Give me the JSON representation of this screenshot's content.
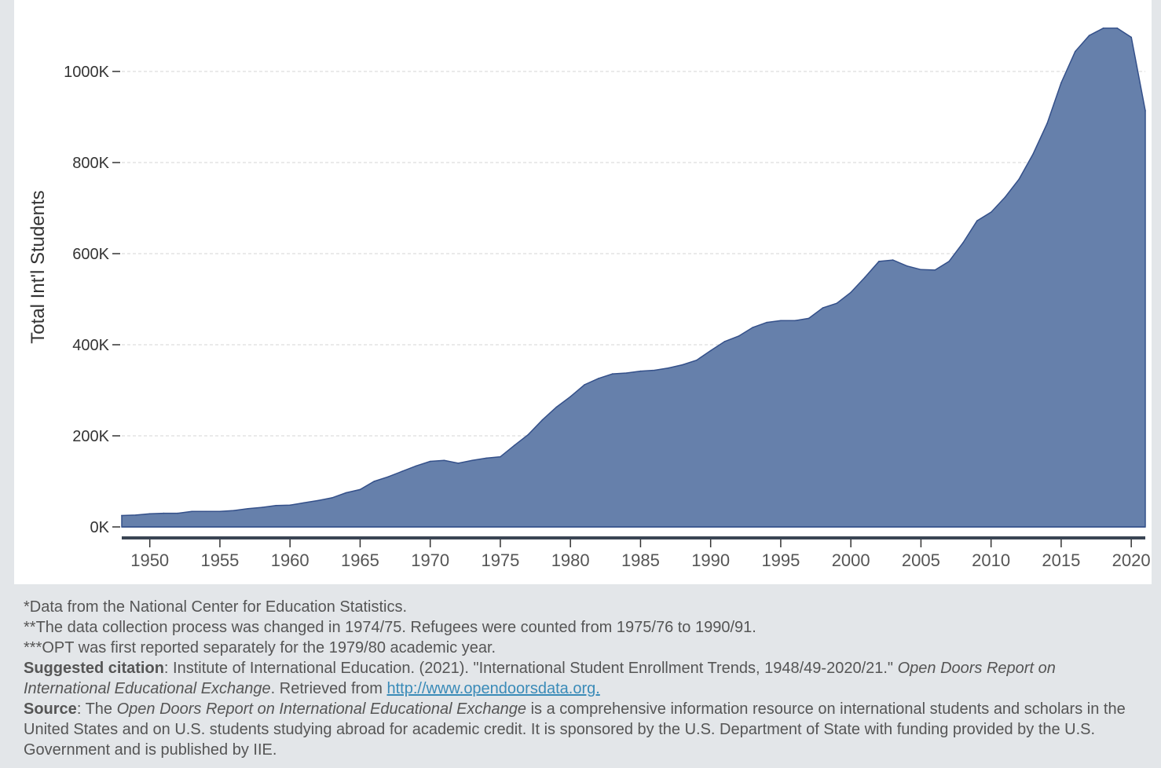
{
  "chart_data": {
    "type": "area",
    "ylabel": "Total Int'l Students",
    "xlabel": "",
    "title": "",
    "xlim": [
      1948,
      2021
    ],
    "ylim": [
      0,
      1100000
    ],
    "x_ticks": [
      1950,
      1955,
      1960,
      1965,
      1970,
      1975,
      1980,
      1985,
      1990,
      1995,
      2000,
      2005,
      2010,
      2015,
      2020
    ],
    "y_ticks": [
      0,
      200000,
      400000,
      600000,
      800000,
      1000000
    ],
    "y_tick_labels": [
      "0K",
      "200K",
      "400K",
      "600K",
      "800K",
      "1000K"
    ],
    "grid": "horizontal dashed",
    "color": "#6680ab",
    "x": [
      1948,
      1949,
      1950,
      1951,
      1952,
      1953,
      1954,
      1955,
      1956,
      1957,
      1958,
      1959,
      1960,
      1961,
      1962,
      1963,
      1964,
      1965,
      1966,
      1967,
      1968,
      1969,
      1970,
      1971,
      1972,
      1973,
      1974,
      1975,
      1976,
      1977,
      1978,
      1979,
      1980,
      1981,
      1982,
      1983,
      1984,
      1985,
      1986,
      1987,
      1988,
      1989,
      1990,
      1991,
      1992,
      1993,
      1994,
      1995,
      1996,
      1997,
      1998,
      1999,
      2000,
      2001,
      2002,
      2003,
      2004,
      2005,
      2006,
      2007,
      2008,
      2009,
      2010,
      2011,
      2012,
      2013,
      2014,
      2015,
      2016,
      2017,
      2018,
      2019,
      2020,
      2021
    ],
    "y": [
      25000,
      26000,
      29000,
      30000,
      30000,
      34000,
      34000,
      34000,
      36000,
      40000,
      43000,
      47000,
      48000,
      53000,
      58000,
      64000,
      75000,
      82000,
      100000,
      110000,
      122000,
      134000,
      144000,
      146000,
      140000,
      146000,
      151000,
      154000,
      179000,
      203000,
      235000,
      263000,
      286000,
      312000,
      326000,
      336000,
      338000,
      342000,
      344000,
      349000,
      356000,
      366000,
      387000,
      407000,
      419000,
      438000,
      449000,
      453000,
      453000,
      458000,
      481000,
      491000,
      515000,
      548000,
      583000,
      586000,
      573000,
      565000,
      564000,
      583000,
      624000,
      672000,
      691000,
      724000,
      764000,
      819000,
      886000,
      975000,
      1044000,
      1079000,
      1095000,
      1095000,
      1075000,
      914000
    ]
  },
  "notes": {
    "line1": "*Data from the National Center for Education Statistics.",
    "line2": "**The data collection process was changed in 1974/75. Refugees were counted from 1975/76 to 1990/91.",
    "line3": "***OPT was first reported separately for the 1979/80 academic year.",
    "citation_label": "Suggested citation",
    "citation_text_1": ": Institute of International Education. (2021). \"International Student Enrollment Trends, 1948/49-2020/21.\" ",
    "citation_title": "Open Doors Report on International Educational Exchange",
    "citation_text_2": ". Retrieved from ",
    "citation_link": "http://www.opendoorsdata.org.",
    "source_label": "Source",
    "source_text_1": ": The ",
    "source_title": "Open Doors Report on International Educational Exchange",
    "source_text_2": " is a comprehensive information resource on international students and scholars in the United States and on U.S. students studying abroad for academic credit. It is sponsored by the U.S. Department of State with funding provided by the U.S. Government and is published by IIE."
  }
}
